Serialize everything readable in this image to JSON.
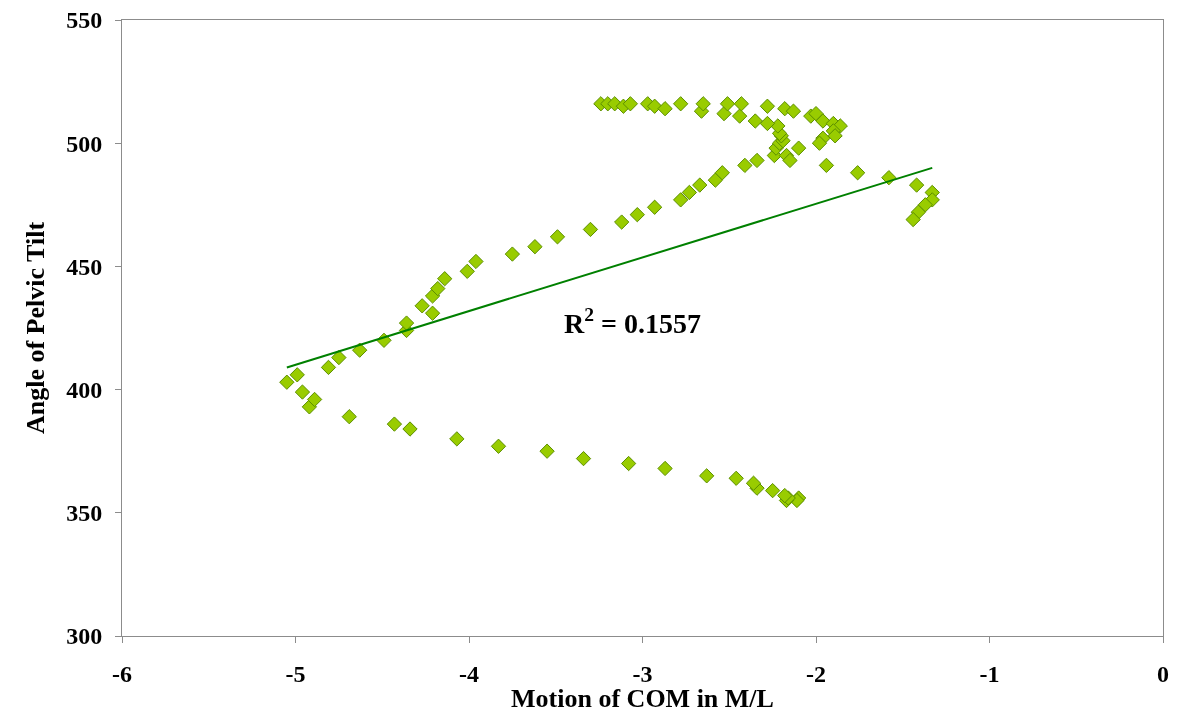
{
  "chart_data": {
    "type": "scatter",
    "xlabel": "Motion of COM in M/L",
    "ylabel": "Angle of Pelvic Tilt",
    "xlim": [
      -6,
      0
    ],
    "xticks": [
      -6,
      -5,
      -4,
      -3,
      -2,
      -1,
      0
    ],
    "ylim": [
      300,
      550
    ],
    "yticks": [
      300,
      350,
      400,
      450,
      500,
      550
    ],
    "marker": "diamond",
    "annotations": [
      "R$^{2}$ = 0.1557"
    ],
    "series": [
      {
        "color": "#99cc00",
        "x": [
          -2.1,
          -2.11,
          -2.17,
          -2.16,
          -2.18,
          -2.25,
          -2.34,
          -2.36,
          -2.46,
          -2.63,
          -2.87,
          -3.08,
          -3.34,
          -3.55,
          -3.83,
          -4.07,
          -4.34,
          -4.43,
          -4.69,
          -4.92,
          -4.89,
          -4.96,
          -5.05,
          -4.99,
          -4.81,
          -4.75,
          -4.63,
          -4.49,
          -4.36,
          -4.36,
          -4.21,
          -4.27,
          -4.21,
          -4.18,
          -4.14,
          -4.01,
          -3.96,
          -3.75,
          -3.62,
          -3.49,
          -3.3,
          -3.12,
          -3.03,
          -2.93,
          -2.78,
          -2.73,
          -2.67,
          -2.58,
          -2.54,
          -2.41,
          -2.34,
          -2.24,
          -2.23,
          -2.21,
          -2.19,
          -2.2,
          -2.21,
          -2.22,
          -2.17,
          -2.15,
          -2.1,
          -2.28,
          -2.35,
          -2.44,
          -2.53,
          -2.66,
          -3.24,
          -3.2,
          -3.16,
          -3.11,
          -3.07,
          -2.97,
          -2.93,
          -2.87,
          -2.78,
          -2.65,
          -2.51,
          -2.43,
          -2.28,
          -2.18,
          -2.13,
          -2.03,
          -2.0,
          -1.96,
          -1.9,
          -1.86,
          -1.9,
          -1.89,
          -1.96,
          -1.98,
          -1.94,
          -1.76,
          -1.58,
          -1.42,
          -1.33,
          -1.33,
          -1.37,
          -1.41,
          -1.44
        ],
        "values": [
          356,
          355,
          355,
          356,
          357,
          359,
          360,
          362,
          364,
          365,
          368,
          370,
          372,
          375,
          377,
          380,
          384,
          386,
          389,
          393,
          396,
          399,
          403,
          406,
          409,
          413,
          416,
          420,
          424,
          427,
          431,
          434,
          438,
          441,
          445,
          448,
          452,
          455,
          458,
          462,
          465,
          468,
          471,
          474,
          477,
          480,
          483,
          485,
          488,
          491,
          493,
          495,
          498,
          500,
          501,
          503,
          504,
          507,
          495,
          493,
          498,
          508,
          509,
          511,
          512,
          513,
          516,
          516,
          516,
          515,
          516,
          516,
          515,
          514,
          516,
          516,
          516,
          516,
          515,
          514,
          513,
          511,
          512,
          509,
          508,
          507,
          505,
          503,
          502,
          500,
          491,
          488,
          486,
          483,
          480,
          477,
          475,
          472,
          469
        ]
      },
      {
        "type": "line",
        "color": "#008000",
        "marker": "none",
        "line_style": "solid",
        "x": [
          -5.05,
          -1.33
        ],
        "values": [
          409,
          490
        ]
      }
    ]
  }
}
